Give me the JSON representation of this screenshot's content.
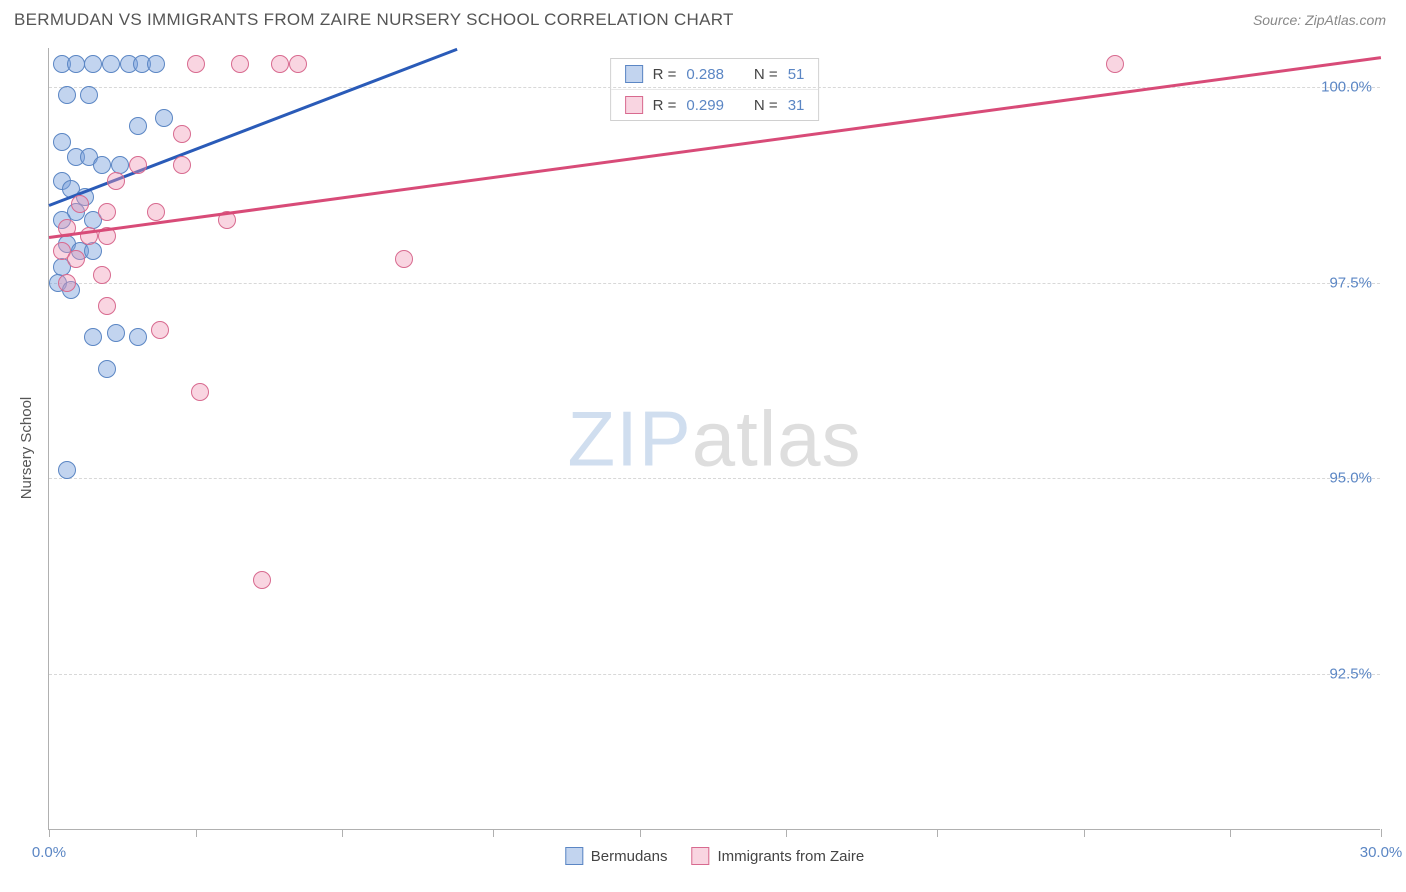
{
  "header": {
    "title": "BERMUDAN VS IMMIGRANTS FROM ZAIRE NURSERY SCHOOL CORRELATION CHART",
    "source": "Source: ZipAtlas.com"
  },
  "watermark": {
    "zip": "ZIP",
    "atlas": "atlas"
  },
  "chart": {
    "type": "scatter",
    "ylabel": "Nursery School",
    "xlim": [
      0,
      30
    ],
    "ylim": [
      90.5,
      100.5
    ],
    "xtick_positions": [
      0,
      3.3,
      6.6,
      10,
      13.3,
      16.6,
      20,
      23.3,
      26.6,
      30
    ],
    "xtick_labels": {
      "first": "0.0%",
      "last": "30.0%"
    },
    "ytick_positions": [
      92.5,
      95.0,
      97.5,
      100.0
    ],
    "ytick_labels": [
      "92.5%",
      "95.0%",
      "97.5%",
      "100.0%"
    ],
    "background_color": "#ffffff",
    "grid_color": "#d8d8d8",
    "axis_color": "#b0b0b0",
    "label_color": "#5b86c4",
    "series": [
      {
        "name": "Bermudans",
        "color_fill": "rgba(120,160,220,0.45)",
        "color_stroke": "#5b86c4",
        "trend_color": "#2a5bb8",
        "trend": {
          "x1": 0,
          "y1": 98.5,
          "x2": 9.2,
          "y2": 100.5
        },
        "stats": {
          "r_label": "R =",
          "r": "0.288",
          "n_label": "N =",
          "n": "51"
        },
        "points": [
          [
            0.3,
            100.3
          ],
          [
            0.6,
            100.3
          ],
          [
            1.0,
            100.3
          ],
          [
            1.4,
            100.3
          ],
          [
            1.8,
            100.3
          ],
          [
            2.1,
            100.3
          ],
          [
            2.4,
            100.3
          ],
          [
            0.4,
            99.9
          ],
          [
            0.9,
            99.9
          ],
          [
            2.0,
            99.5
          ],
          [
            2.6,
            99.6
          ],
          [
            0.3,
            99.3
          ],
          [
            0.6,
            99.1
          ],
          [
            0.9,
            99.1
          ],
          [
            1.2,
            99.0
          ],
          [
            1.6,
            99.0
          ],
          [
            0.3,
            98.8
          ],
          [
            0.5,
            98.7
          ],
          [
            0.8,
            98.6
          ],
          [
            0.6,
            98.4
          ],
          [
            1.0,
            98.3
          ],
          [
            0.3,
            98.3
          ],
          [
            0.4,
            98.0
          ],
          [
            0.7,
            97.9
          ],
          [
            1.0,
            97.9
          ],
          [
            0.3,
            97.7
          ],
          [
            0.2,
            97.5
          ],
          [
            0.5,
            97.4
          ],
          [
            1.0,
            96.8
          ],
          [
            1.5,
            96.85
          ],
          [
            2.0,
            96.8
          ],
          [
            1.3,
            96.4
          ],
          [
            0.4,
            95.1
          ]
        ]
      },
      {
        "name": "Immigrants from Zaire",
        "color_fill": "rgba(240,150,180,0.40)",
        "color_stroke": "#d86a8f",
        "trend_color": "#d84b78",
        "trend": {
          "x1": 0,
          "y1": 98.1,
          "x2": 30,
          "y2": 100.4
        },
        "stats": {
          "r_label": "R =",
          "r": "0.299",
          "n_label": "N =",
          "n": "31"
        },
        "points": [
          [
            3.3,
            100.3
          ],
          [
            4.3,
            100.3
          ],
          [
            5.2,
            100.3
          ],
          [
            5.6,
            100.3
          ],
          [
            24.0,
            100.3
          ],
          [
            3.0,
            99.4
          ],
          [
            2.0,
            99.0
          ],
          [
            3.0,
            99.0
          ],
          [
            1.5,
            98.8
          ],
          [
            0.7,
            98.5
          ],
          [
            1.3,
            98.4
          ],
          [
            2.4,
            98.4
          ],
          [
            0.4,
            98.2
          ],
          [
            0.9,
            98.1
          ],
          [
            1.3,
            98.1
          ],
          [
            0.3,
            97.9
          ],
          [
            0.6,
            97.8
          ],
          [
            4.0,
            98.3
          ],
          [
            1.2,
            97.6
          ],
          [
            0.4,
            97.5
          ],
          [
            8.0,
            97.8
          ],
          [
            1.3,
            97.2
          ],
          [
            2.5,
            96.9
          ],
          [
            3.4,
            96.1
          ],
          [
            4.8,
            93.7
          ]
        ]
      }
    ]
  },
  "legend_bottom": {
    "series1": "Bermudans",
    "series2": "Immigrants from Zaire"
  }
}
